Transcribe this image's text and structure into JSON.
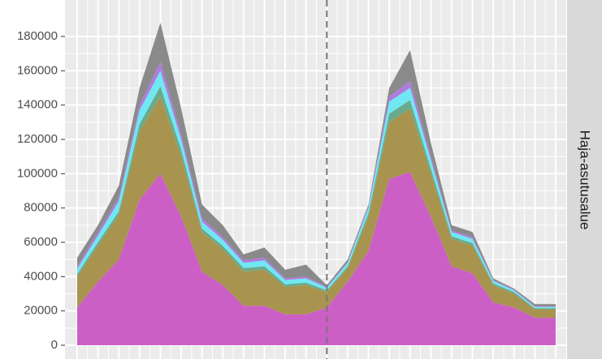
{
  "chart_data": {
    "type": "stacked_area",
    "facet_label": "Haja-asutusalue",
    "categories": [
      null,
      null,
      null,
      null,
      null,
      null,
      null,
      null,
      null,
      null,
      null,
      null,
      null,
      null,
      null,
      null,
      null,
      null,
      null,
      null,
      null,
      null,
      null,
      null
    ],
    "series": [
      {
        "color": "#cc5fc6",
        "values": [
          22000,
          37000,
          50000,
          85000,
          100000,
          75000,
          43000,
          35000,
          23000,
          23000,
          18000,
          18000,
          22000,
          37000,
          55000,
          97000,
          101000,
          75000,
          46000,
          42000,
          25000,
          22000,
          16000,
          16000
        ]
      },
      {
        "color": "#a8944e",
        "values": [
          18000,
          21000,
          26000,
          40000,
          45000,
          35000,
          23000,
          21000,
          20000,
          21000,
          16000,
          17000,
          9000,
          8000,
          20000,
          33000,
          37000,
          25000,
          16000,
          16000,
          10000,
          8000,
          5000,
          5000
        ]
      },
      {
        "color": "#6aaa8c",
        "values": [
          1500,
          2000,
          2000,
          4000,
          6000,
          4000,
          2000,
          2000,
          2000,
          2000,
          1500,
          1500,
          1000,
          1000,
          2000,
          5000,
          5000,
          3000,
          1500,
          1500,
          1000,
          1000,
          500,
          500
        ]
      },
      {
        "color": "#6fe8f2",
        "values": [
          3000,
          4000,
          6000,
          8000,
          9000,
          6000,
          4000,
          3500,
          3000,
          3500,
          2500,
          2500,
          1500,
          2000,
          3000,
          7000,
          7000,
          5000,
          2500,
          2500,
          1500,
          1000,
          800,
          800
        ]
      },
      {
        "color": "#b07ae0",
        "values": [
          1500,
          2000,
          2000,
          3000,
          5000,
          3000,
          2000,
          1500,
          1500,
          1500,
          1000,
          1000,
          500,
          500,
          1000,
          3000,
          4000,
          2000,
          1000,
          1000,
          500,
          500,
          300,
          300
        ]
      },
      {
        "color": "#8a8a8a",
        "values": [
          5000,
          4000,
          7000,
          10000,
          23000,
          15000,
          8000,
          7000,
          3500,
          6000,
          5000,
          7000,
          1000,
          1500,
          1000,
          5000,
          18000,
          8000,
          3000,
          3000,
          1000,
          500,
          1400,
          1400
        ]
      }
    ],
    "vline": 12,
    "ylim": [
      0,
      180000
    ],
    "yticks": [
      0,
      20000,
      40000,
      60000,
      80000,
      100000,
      120000,
      140000,
      160000,
      180000
    ],
    "grid": true
  }
}
